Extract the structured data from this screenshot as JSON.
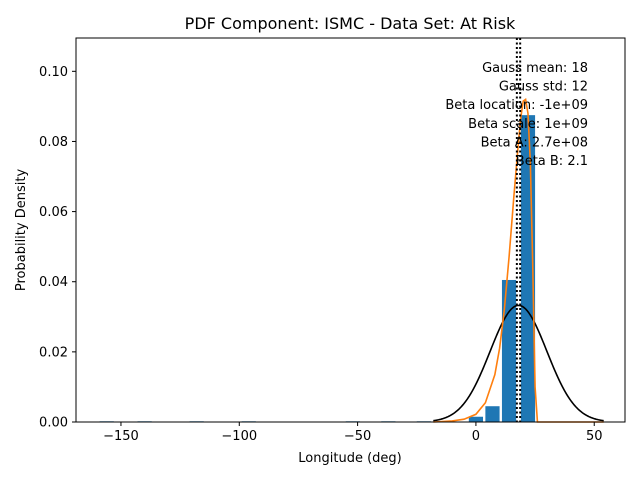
{
  "chart_data": {
    "type": "bar",
    "title": "PDF Component: ISMC - Data Set: At Risk",
    "xlabel": "Longitude (deg)",
    "ylabel": "Probability Density",
    "xlim": [
      -169,
      63
    ],
    "ylim": [
      0,
      0.1095
    ],
    "xticks": [
      {
        "value": -150,
        "label": "−150"
      },
      {
        "value": -100,
        "label": "−100"
      },
      {
        "value": -50,
        "label": "−50"
      },
      {
        "value": 0,
        "label": "0"
      },
      {
        "value": 50,
        "label": "50"
      }
    ],
    "yticks": [
      {
        "value": 0.0,
        "label": "0.00"
      },
      {
        "value": 0.02,
        "label": "0.02"
      },
      {
        "value": 0.04,
        "label": "0.04"
      },
      {
        "value": 0.06,
        "label": "0.06"
      },
      {
        "value": 0.08,
        "label": "0.08"
      },
      {
        "value": 0.1,
        "label": "0.10"
      }
    ],
    "grid": false,
    "bar_width": 6,
    "bar_color": "#1f77b4",
    "histogram": {
      "x": [
        -156,
        -140,
        -118,
        -96,
        -52,
        -37,
        -22,
        0,
        7,
        14,
        22
      ],
      "values": [
        0.0002,
        0.0002,
        0.0002,
        0.0002,
        0.0002,
        0.0002,
        0.0002,
        0.0015,
        0.0045,
        0.0405,
        0.0875
      ]
    },
    "series": [
      {
        "kind": "gaussian",
        "color": "#000000",
        "mean": 18,
        "std": 12,
        "x_range": [
          -18,
          54
        ]
      },
      {
        "kind": "fitted-curve",
        "color": "#ff7f0e",
        "x": [
          -18,
          -10,
          -5,
          0,
          4,
          8,
          10,
          12,
          14,
          16,
          18,
          19,
          20,
          21,
          22,
          23,
          24,
          25,
          26,
          30,
          40,
          54
        ],
        "y": [
          0.0,
          0.0003,
          0.0008,
          0.0022,
          0.0055,
          0.0135,
          0.021,
          0.032,
          0.047,
          0.064,
          0.08,
          0.087,
          0.0915,
          0.092,
          0.088,
          0.074,
          0.045,
          0.01,
          0.0,
          0.0,
          0.0,
          0.0
        ]
      }
    ],
    "vlines": [
      {
        "x": 17.3,
        "style": "dotted",
        "color": "#000000"
      },
      {
        "x": 18.7,
        "style": "dotted",
        "color": "#000000"
      }
    ],
    "annotations": [
      "Gauss mean: 18",
      "Gauss std: 12",
      "Beta location: -1e+09",
      "Beta scale: 1e+09",
      "Beta A: 2.7e+08",
      "Beta B: 2.1"
    ]
  }
}
